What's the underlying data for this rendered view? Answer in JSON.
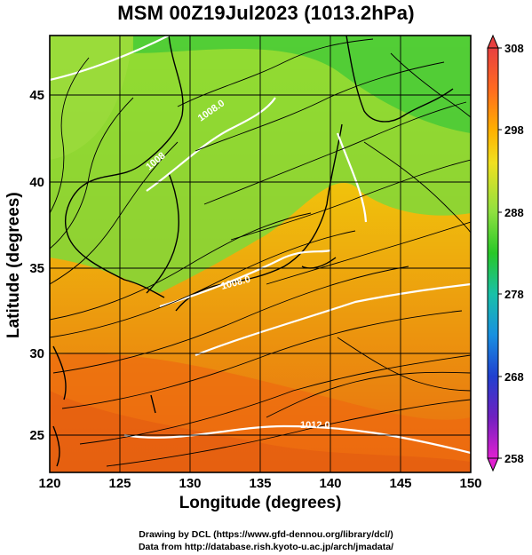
{
  "title": "MSM 00Z19Jul2023 (1013.2hPa)",
  "xlabel": "Longitude (degrees)",
  "ylabel": "Latitude  (degrees)",
  "credits": [
    "Drawing by DCL (https://www.gfd-dennou.org/library/dcl/)",
    "Data from http://database.rish.kyoto-u.ac.jp/arch/jmadata/"
  ],
  "map": {
    "lon_range": [
      120,
      150
    ],
    "lat_range": [
      22.5,
      47.7
    ],
    "lon_ticks": [
      "120",
      "125",
      "130",
      "135",
      "140",
      "145",
      "150"
    ],
    "lat_ticks": [
      "25",
      "30",
      "35",
      "40",
      "45"
    ],
    "contour_labels": [
      "1008.0",
      "1008.0",
      "1012.0",
      "1008"
    ],
    "colorbar": {
      "ticks": [
        "308",
        "298",
        "288",
        "278",
        "268",
        "258"
      ],
      "colors": [
        "#e84040",
        "#ff7a1a",
        "#ffb000",
        "#f0e020",
        "#8fe040",
        "#28c828",
        "#18c0a8",
        "#1890e0",
        "#2040d0",
        "#7020c0",
        "#d020d0"
      ]
    }
  }
}
